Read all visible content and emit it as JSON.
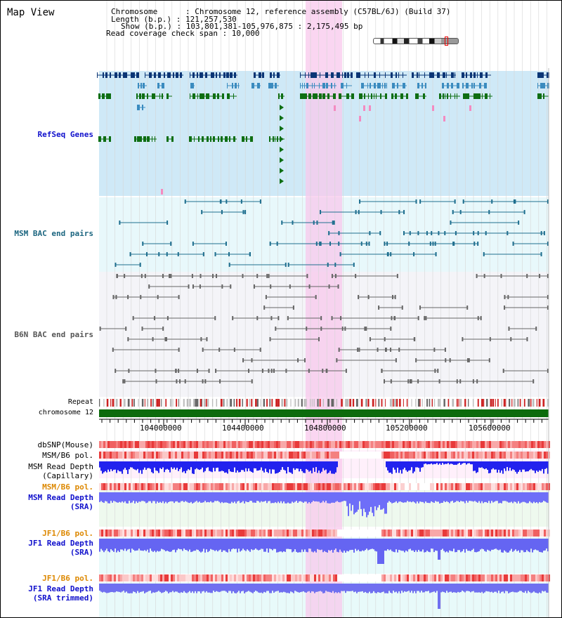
{
  "header": {
    "title": "Map View",
    "info_lines": [
      "Chromosome      : Chromosome 12, reference assembly (C57BL/6J) (Build 37)",
      "Length (b.p.) : 121,257,530",
      "Show (b.p.) : 103,801,381-105,976,875 : 2,175,495 bp",
      "Read coverage check span : 10,000"
    ]
  },
  "tracks": {
    "refseq": "RefSeq Genes",
    "msm_bac": "MSM BAC end pairs",
    "b6n_bac": "B6N BAC end pairs",
    "repeat": "Repeat",
    "chromosome": "chromosome 12",
    "dbsnp": "dbSNP(Mouse)",
    "msm_b6_pol_1": "MSM/B6 pol.",
    "msm_read_depth_cap_1": "MSM Read Depth",
    "msm_read_depth_cap_2": "(Capillary)",
    "msm_b6_pol_2": "MSM/B6 pol.",
    "msm_read_depth_sra_1": "MSM Read Depth",
    "msm_read_depth_sra_2": "(SRA)",
    "jf1_b6_pol_1": "JF1/B6 pol.",
    "jf1_read_depth_sra_1": "JF1 Read Depth",
    "jf1_read_depth_sra_2": "(SRA)",
    "jf1_b6_pol_2": "JF1/B6 pol.",
    "jf1_read_depth_trim_1": "JF1 Read Depth",
    "jf1_read_depth_trim_2": "(SRA trimmed)"
  },
  "ruler": {
    "ticks": [
      "104000000",
      "104400000",
      "104800000",
      "105200000",
      "105600000"
    ]
  },
  "colors": {
    "refseq_bg": "#cfe9f7",
    "msm_bac_bg": "#e8f8fb",
    "b6n_bac_bg": "#f4f4f8",
    "highlight": "#f8c8ec",
    "gene_dark": "#0a3575",
    "gene_mid": "#3a8bbf",
    "gene_green": "#0e6e12",
    "bac_msm": "#1f6f8f",
    "bac_b6n": "#666666",
    "label_blue": "#0000cc",
    "label_teal": "#1c6680",
    "label_orange": "#dd8800",
    "depth_blue": "#2222ee"
  }
}
